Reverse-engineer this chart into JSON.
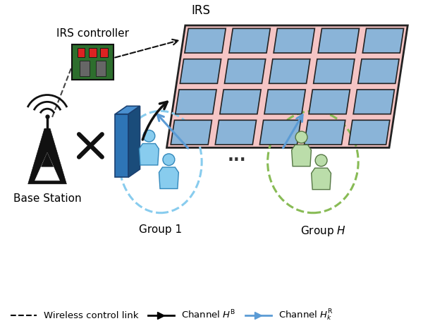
{
  "bg_color": "#ffffff",
  "irs_label": "IRS",
  "irs_controller_label": "IRS controller",
  "base_station_label": "Base Station",
  "group1_label": "Group 1",
  "groupH_label": "Group $H$",
  "dots_label": "...",
  "legend_dashed_label": "Wireless control link",
  "legend_black_arrow_label": "Channel $H^{\\mathrm{B}}$",
  "legend_blue_arrow_label": "Channel $H_k^{\\mathrm{R}}$",
  "irs_panel_color": "#f5c5c5",
  "irs_cell_color": "#8ab4d8",
  "irs_border_color": "#222222",
  "group1_ellipse_color": "#88ccee",
  "groupH_ellipse_color": "#88bb55",
  "person_blue_color": "#88ccee",
  "person_blue_dark": "#3388bb",
  "person_green_color": "#bbddaa",
  "person_green_dark": "#557744",
  "beamforming_front": "#2e75b6",
  "beamforming_top": "#4a90d0",
  "beamforming_right": "#1a4c7a",
  "arrow_black_color": "#111111",
  "arrow_blue_color": "#5b9bd5",
  "dashed_line_color": "#444444",
  "cross_color": "#111111",
  "label_fontsize": 11,
  "legend_fontsize": 9.5
}
